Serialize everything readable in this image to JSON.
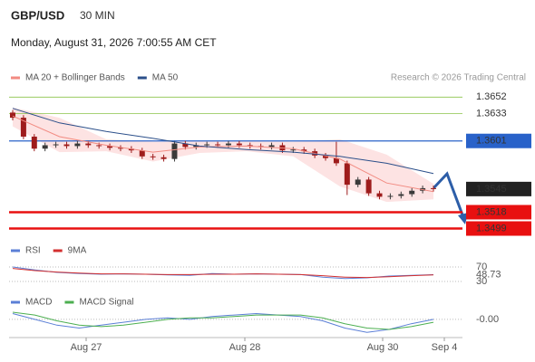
{
  "chart_data": [
    {
      "type": "candlestick",
      "title": "GBP/USD",
      "timeframe": "30 MIN",
      "subtitle": "Monday, August 31, 2026 7:00:55 AM CET",
      "source": "Research © 2026 Trading Central",
      "ylim": [
        1.3489,
        1.3665
      ],
      "candles": {
        "open": [
          1.3634,
          1.3628,
          1.3606,
          1.3592,
          1.3596,
          1.3597,
          1.3595,
          1.3598,
          1.3596,
          1.3595,
          1.3593,
          1.3592,
          1.359,
          1.3583,
          1.3582,
          1.358,
          1.3598,
          1.3594,
          1.3596,
          1.3597,
          1.3596,
          1.3598,
          1.3596,
          1.3595,
          1.3594,
          1.3596,
          1.359,
          1.3591,
          1.3589,
          1.3584,
          1.3581,
          1.3575,
          1.355,
          1.3556,
          1.354,
          1.3536,
          1.3537,
          1.3539,
          1.3543,
          1.3546
        ],
        "high": [
          1.3637,
          1.3631,
          1.3609,
          1.3599,
          1.36,
          1.36,
          1.3601,
          1.3601,
          1.3599,
          1.3598,
          1.3596,
          1.3595,
          1.3593,
          1.3586,
          1.3585,
          1.3601,
          1.3601,
          1.3599,
          1.36,
          1.36,
          1.3601,
          1.3601,
          1.3599,
          1.3598,
          1.3599,
          1.3599,
          1.3594,
          1.3594,
          1.3592,
          1.3587,
          1.36,
          1.3578,
          1.3559,
          1.3559,
          1.3543,
          1.354,
          1.3542,
          1.3546,
          1.3549,
          1.3549
        ],
        "low": [
          1.3625,
          1.3603,
          1.3589,
          1.3589,
          1.3593,
          1.3592,
          1.3592,
          1.3593,
          1.3592,
          1.359,
          1.3589,
          1.3587,
          1.358,
          1.3579,
          1.3577,
          1.3577,
          1.3591,
          1.3591,
          1.3593,
          1.3593,
          1.3593,
          1.3593,
          1.3592,
          1.3591,
          1.3591,
          1.3587,
          1.3587,
          1.3586,
          1.3581,
          1.3578,
          1.3572,
          1.3538,
          1.3547,
          1.3537,
          1.3533,
          1.3533,
          1.3534,
          1.3536,
          1.354,
          1.3542
        ],
        "close": [
          1.3628,
          1.3606,
          1.3592,
          1.3596,
          1.3597,
          1.3595,
          1.3598,
          1.3596,
          1.3595,
          1.3593,
          1.3592,
          1.359,
          1.3583,
          1.3582,
          1.358,
          1.3598,
          1.3594,
          1.3596,
          1.3597,
          1.3596,
          1.3598,
          1.3596,
          1.3595,
          1.3594,
          1.3596,
          1.359,
          1.3591,
          1.3589,
          1.3584,
          1.3581,
          1.3575,
          1.355,
          1.3556,
          1.354,
          1.3536,
          1.3537,
          1.3539,
          1.3543,
          1.3546,
          1.3545
        ],
        "up_color": "#3a3a3a",
        "down_color": "#9e1c1c"
      },
      "series": [
        {
          "name": "MA 20 + Bollinger Bands",
          "color": "#f28b82",
          "band_color": "#fde3e3",
          "values": [
            1.363,
            1.3606,
            1.3596,
            1.3588,
            1.3594,
            1.3595,
            1.3592,
            1.358,
            1.3552,
            1.3542
          ],
          "upper": [
            1.364,
            1.3628,
            1.3603,
            1.36,
            1.3601,
            1.3601,
            1.36,
            1.3603,
            1.3585,
            1.3551
          ],
          "lower": [
            1.3618,
            1.3588,
            1.3589,
            1.3577,
            1.3587,
            1.3589,
            1.3583,
            1.3548,
            1.353,
            1.3533
          ]
        },
        {
          "name": "MA 50",
          "color": "#2b4f8a",
          "values": [
            1.3639,
            1.3622,
            1.3612,
            1.3604,
            1.3595,
            1.3591,
            1.3588,
            1.3583,
            1.3575,
            1.3563
          ]
        }
      ],
      "levels": [
        {
          "value": 1.3652,
          "color": "#8bc34a",
          "boxed": false
        },
        {
          "value": 1.3633,
          "color": "#8bc34a",
          "boxed": false
        },
        {
          "value": 1.3601,
          "color": "#2962c9",
          "boxed": true
        },
        {
          "value": 1.3518,
          "color": "#e81010",
          "boxed": true
        },
        {
          "value": 1.3499,
          "color": "#e81010",
          "boxed": true
        }
      ],
      "last_color": "#222222",
      "xticks": [
        "Aug 27",
        "Aug 28",
        "Aug 30",
        "Sep 4"
      ]
    },
    {
      "type": "line",
      "ylim": [
        0,
        100
      ],
      "yticks": [
        70,
        30
      ],
      "series": [
        {
          "name": "RSI",
          "color": "#5b7fd6",
          "values": [
            70,
            62,
            55,
            52,
            50,
            51,
            50,
            48,
            47,
            52,
            50,
            51,
            50,
            49,
            42,
            38,
            40,
            45,
            47,
            48.73
          ]
        },
        {
          "name": "9MA",
          "color": "#d32f2f",
          "values": [
            66,
            60,
            56,
            53,
            51,
            51,
            50,
            49,
            49,
            50,
            50,
            51,
            50,
            49,
            46,
            42,
            41,
            43,
            46,
            48
          ]
        }
      ]
    },
    {
      "type": "line",
      "ylim": [
        -0.0012,
        0.001
      ],
      "yticks": [
        {
          "value": 0,
          "label": "-0.00"
        }
      ],
      "series": [
        {
          "name": "MACD",
          "color": "#5b7fd6",
          "values": [
            0.0004,
            0.0,
            -0.0004,
            -0.0006,
            -0.0004,
            -0.0002,
            0.0,
            0.0001,
            0.0,
            0.0002,
            0.0003,
            0.0004,
            0.0003,
            0.0002,
            -0.0001,
            -0.0006,
            -0.0009,
            -0.0007,
            -0.0003,
            0.0
          ]
        },
        {
          "name": "MACD Signal",
          "color": "#4caf50",
          "values": [
            0.0005,
            0.0003,
            -0.0001,
            -0.0004,
            -0.0005,
            -0.0004,
            -0.0002,
            0.0,
            0.0001,
            0.0001,
            0.0002,
            0.0003,
            0.0003,
            0.0003,
            0.0001,
            -0.0003,
            -0.0006,
            -0.0007,
            -0.0005,
            -0.0002
          ]
        }
      ]
    }
  ]
}
